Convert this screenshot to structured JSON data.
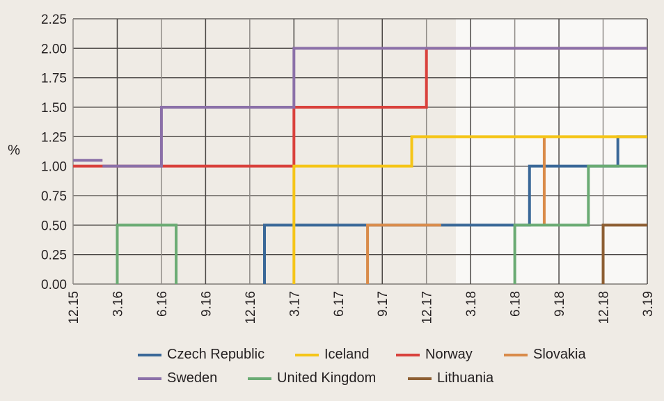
{
  "chart_data": {
    "type": "line",
    "step": true,
    "ylabel": "%",
    "xlabel": "",
    "ylim": [
      0,
      2.25
    ],
    "yticks": [
      "0.00",
      "0.25",
      "0.50",
      "0.75",
      "1.00",
      "1.25",
      "1.50",
      "1.75",
      "2.00",
      "2.25"
    ],
    "xticks": [
      "12.15",
      "3.16",
      "6.16",
      "9.16",
      "12.16",
      "3.17",
      "6.17",
      "9.17",
      "12.17",
      "3.18",
      "6.18",
      "9.18",
      "12.18",
      "3.19"
    ],
    "x_unit": "months since 12.15",
    "xlim": [
      0,
      39
    ],
    "shaded_region_end_month": 26,
    "grid": true,
    "legend_position": "bottom",
    "series": [
      {
        "name": "Norway",
        "color": "#d9413c",
        "segments": [
          [
            [
              0,
              1.0
            ],
            [
              2,
              1.0
            ],
            [
              2,
              1.0
            ],
            [
              15,
              1.0
            ],
            [
              15,
              1.5
            ],
            [
              24,
              1.5
            ],
            [
              24,
              2.0
            ],
            [
              39,
              2.0
            ]
          ]
        ]
      },
      {
        "name": "Sweden",
        "color": "#8b70a8",
        "segments": [
          [
            [
              0,
              1.05
            ],
            [
              2,
              1.05
            ]
          ],
          [
            [
              2,
              1.0
            ],
            [
              6,
              1.0
            ],
            [
              6,
              1.5
            ],
            [
              15,
              1.5
            ],
            [
              15,
              2.0
            ],
            [
              39,
              2.0
            ]
          ]
        ]
      },
      {
        "name": "Czech Republic",
        "color": "#3a6898",
        "segments": [
          [
            [
              13,
              0
            ],
            [
              13,
              0.5
            ],
            [
              31,
              0.5
            ],
            [
              31,
              1.0
            ],
            [
              37,
              1.0
            ],
            [
              37,
              1.25
            ],
            [
              39,
              1.25
            ]
          ]
        ]
      },
      {
        "name": "Slovakia",
        "color": "#d98b4a",
        "segments": [
          [
            [
              20,
              0
            ],
            [
              20,
              0.5
            ],
            [
              25,
              0.5
            ]
          ],
          [
            [
              32,
              0.5
            ],
            [
              32,
              1.25
            ]
          ]
        ]
      },
      {
        "name": "United Kingdom",
        "color": "#6aab73",
        "segments": [
          [
            [
              3,
              0
            ],
            [
              3,
              0.5
            ],
            [
              7,
              0.5
            ],
            [
              7,
              0
            ]
          ],
          [
            [
              30,
              0
            ],
            [
              30,
              0.5
            ],
            [
              35,
              0.5
            ],
            [
              35,
              1.0
            ],
            [
              39,
              1.0
            ]
          ]
        ]
      },
      {
        "name": "Iceland",
        "color": "#f5c518",
        "segments": [
          [
            [
              15,
              0
            ],
            [
              15,
              1.0
            ],
            [
              23,
              1.0
            ],
            [
              23,
              1.25
            ],
            [
              39,
              1.25
            ]
          ]
        ]
      },
      {
        "name": "Lithuania",
        "color": "#8d5e32",
        "segments": [
          [
            [
              36,
              0
            ],
            [
              36,
              0.5
            ],
            [
              39,
              0.5
            ]
          ]
        ]
      }
    ],
    "legend": [
      {
        "name": "Czech Republic",
        "color": "#3a6898"
      },
      {
        "name": "Iceland",
        "color": "#f5c518"
      },
      {
        "name": "Norway",
        "color": "#d9413c"
      },
      {
        "name": "Slovakia",
        "color": "#d98b4a"
      },
      {
        "name": "Sweden",
        "color": "#8b70a8"
      },
      {
        "name": "United Kingdom",
        "color": "#6aab73"
      },
      {
        "name": "Lithuania",
        "color": "#8d5e32"
      }
    ]
  }
}
